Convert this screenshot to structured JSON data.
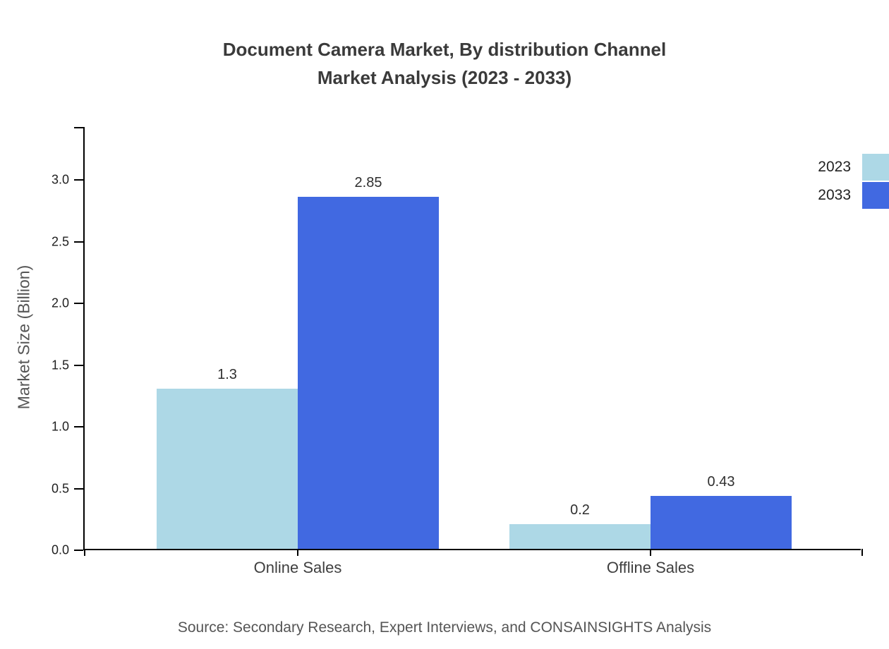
{
  "title": {
    "line1": "Document Camera Market, By distribution Channel",
    "line2": "Market Analysis (2023 - 2033)"
  },
  "source": "Source: Secondary Research, Expert Interviews, and CONSAINSIGHTS Analysis",
  "chart_data": {
    "type": "bar",
    "title": "Document Camera Market, By distribution Channel Market Analysis (2023 - 2033)",
    "categories": [
      "Online Sales",
      "Offline Sales"
    ],
    "series": [
      {
        "name": "2023",
        "color": "#add8e6",
        "values": [
          1.3,
          0.2
        ]
      },
      {
        "name": "2033",
        "color": "#4169e1",
        "values": [
          2.85,
          0.43
        ]
      }
    ],
    "xlabel": "",
    "ylabel": "Market Size (Billion)",
    "yticks": [
      0.0,
      0.5,
      1.0,
      1.5,
      2.0,
      2.5,
      3.0
    ],
    "ylim": [
      0,
      3.43
    ],
    "grid": false,
    "legend_position": "top-right"
  }
}
